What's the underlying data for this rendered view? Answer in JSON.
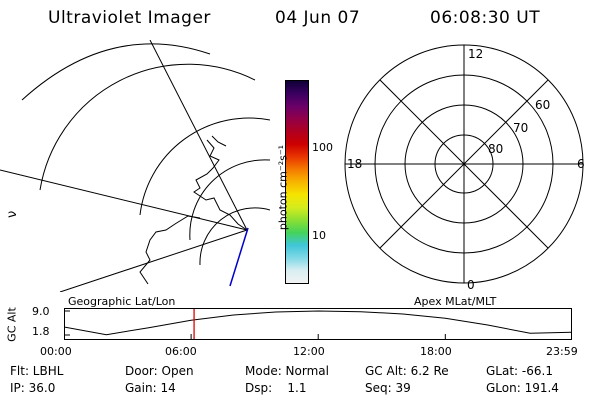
{
  "header": {
    "title": "Ultraviolet Imager",
    "date": "04 Jun 07",
    "time": "06:08:30 UT"
  },
  "colorbar": {
    "unit": "photon cm⁻²s⁻¹",
    "tick_high": "100",
    "tick_low": "10",
    "colors": [
      "#f2f2f2",
      "#d9eef2",
      "#7fd8e6",
      "#3fc6d8",
      "#45d35a",
      "#8de032",
      "#d6ec1e",
      "#f5e400",
      "#f8b400",
      "#f47a00",
      "#e93500",
      "#cc0000",
      "#b00020",
      "#920048",
      "#6a0069",
      "#3a0060",
      "#100038"
    ]
  },
  "left_map": {
    "label": "Geographic Lat/Lon",
    "side_glyph": "ν"
  },
  "right_map": {
    "label": "Apex MLat/MLT",
    "mlt_top": "12",
    "mlt_left": "18",
    "mlt_right": "6",
    "mlt_bottom": "0",
    "lat_60": "60",
    "lat_70": "70",
    "lat_80": "80"
  },
  "altitude_plot": {
    "axis_label": "GC Alt",
    "y_max": "9.0",
    "y_min": "1.8",
    "x_ticks": [
      "00:00",
      "06:00",
      "12:00",
      "18:00",
      "23:59"
    ],
    "marker_color": "#e00000"
  },
  "chart_data": {
    "type": "line",
    "title": "",
    "xlabel": "",
    "ylabel": "GC Alt",
    "ylim": [
      1.8,
      9.0
    ],
    "x_hours": [
      0,
      2,
      4,
      6,
      8,
      10,
      12,
      14,
      16,
      18,
      20,
      22,
      23.98
    ],
    "y_alt_re": [
      4.2,
      1.9,
      4.0,
      6.2,
      7.8,
      8.7,
      9.0,
      8.8,
      8.1,
      6.8,
      4.8,
      2.3,
      2.6
    ],
    "current_time_hours": 6.14
  },
  "footer": {
    "filter": "Flt: LBHL",
    "door": "Door: Open",
    "mode": "Mode: Normal",
    "gc_alt": "GC Alt: 6.2 Re",
    "glat": "GLat: -66.1",
    "ip": "IP: 36.0",
    "gain": "Gain: 14",
    "dsp": "Dsp:    1.1",
    "seq": "Seq: 39",
    "glon": "GLon: 191.4"
  }
}
